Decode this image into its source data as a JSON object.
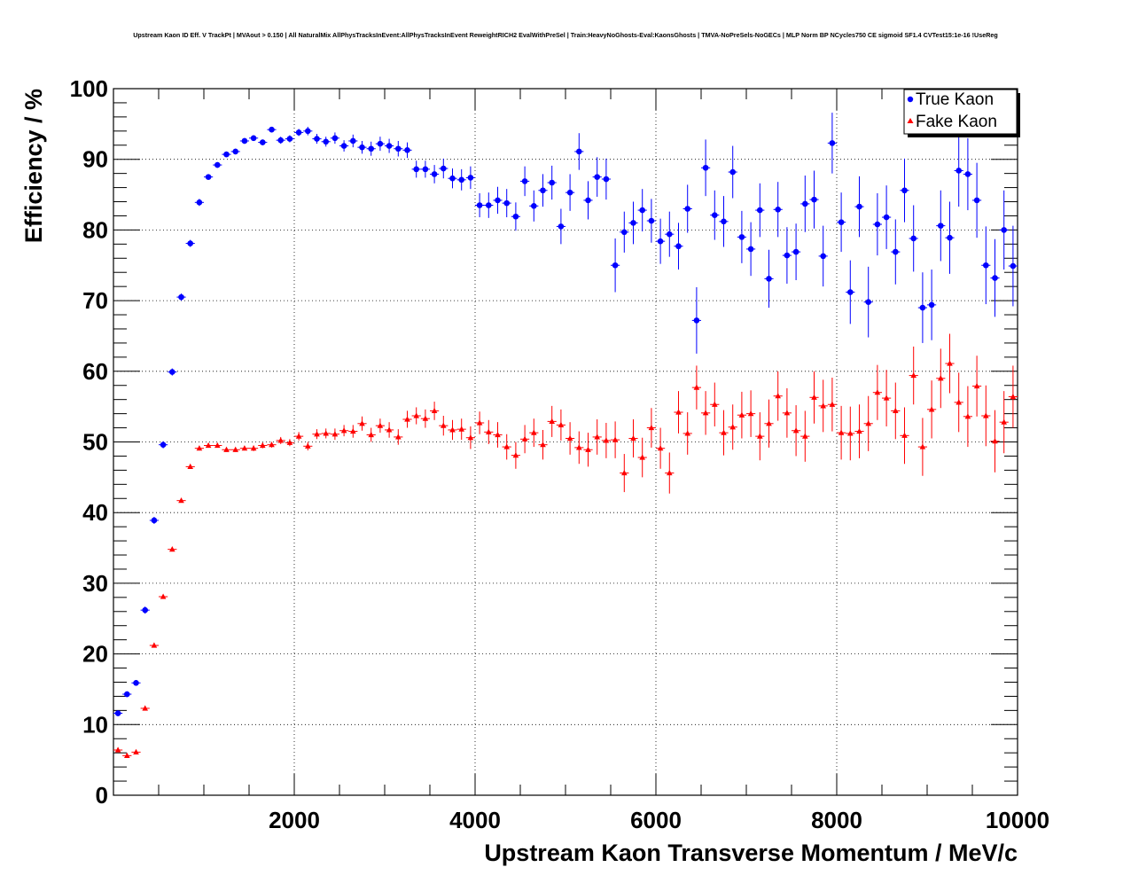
{
  "chart_data": {
    "type": "scatter",
    "title": "Upstream Kaon ID Eff. V TrackPt | MVAout > 0.150 | All NaturalMix AllPhysTracksInEvent:AllPhysTracksInEvent ReweightRICH2 EvalWithPreSel | Train:HeavyNoGhosts-Eval:KaonsGhosts | TMVA-NoPreSels-NoGECs | MLP Norm BP NCycles750 CE sigmoid SF1.4 CVTest15:1e-16 !UseReg",
    "xlabel": "Upstream Kaon Transverse Momentum / MeV/c",
    "ylabel": "Efficiency / %",
    "xlim": [
      0,
      10000
    ],
    "ylim": [
      0,
      100
    ],
    "xticks": [
      2000,
      4000,
      6000,
      8000,
      10000
    ],
    "xtick_labels": [
      "2000",
      "4000",
      "6000",
      "8000",
      "10000"
    ],
    "yticks": [
      0,
      10,
      20,
      30,
      40,
      50,
      60,
      70,
      80,
      90,
      100
    ],
    "ytick_labels": [
      "0",
      "10",
      "20",
      "30",
      "40",
      "50",
      "60",
      "70",
      "80",
      "90",
      "100"
    ],
    "grid": true,
    "bin_half_width": 50,
    "legend": {
      "position": "top-right",
      "entries": [
        {
          "label": "True Kaon",
          "color": "#0000ff",
          "marker": "circle"
        },
        {
          "label": "Fake Kaon",
          "color": "#ff0000",
          "marker": "triangle"
        }
      ]
    },
    "x": [
      50,
      150,
      250,
      350,
      450,
      550,
      650,
      750,
      850,
      950,
      1050,
      1150,
      1250,
      1350,
      1450,
      1550,
      1650,
      1750,
      1850,
      1950,
      2050,
      2150,
      2250,
      2350,
      2450,
      2550,
      2650,
      2750,
      2850,
      2950,
      3050,
      3150,
      3250,
      3350,
      3450,
      3550,
      3650,
      3750,
      3850,
      3950,
      4050,
      4150,
      4250,
      4350,
      4450,
      4550,
      4650,
      4750,
      4850,
      4950,
      5050,
      5150,
      5250,
      5350,
      5450,
      5550,
      5650,
      5750,
      5850,
      5950,
      6050,
      6150,
      6250,
      6350,
      6450,
      6550,
      6650,
      6750,
      6850,
      6950,
      7050,
      7150,
      7250,
      7350,
      7450,
      7550,
      7650,
      7750,
      7850,
      7950,
      8050,
      8150,
      8250,
      8350,
      8450,
      8550,
      8650,
      8750,
      8850,
      8950,
      9050,
      9150,
      9250,
      9350,
      9450,
      9550,
      9650,
      9750,
      9850,
      9950
    ],
    "series": [
      {
        "name": "True Kaon",
        "color": "#0000ff",
        "marker": "circle",
        "values": [
          11.6,
          14.3,
          15.9,
          26.2,
          38.9,
          49.6,
          59.9,
          70.5,
          78.1,
          83.9,
          87.5,
          89.2,
          90.7,
          91.1,
          92.6,
          93,
          92.4,
          94.2,
          92.7,
          92.9,
          93.8,
          94,
          92.9,
          92.5,
          93,
          91.9,
          92.6,
          91.7,
          91.5,
          92.2,
          91.9,
          91.5,
          91.3,
          88.6,
          88.6,
          87.9,
          88.7,
          87.3,
          87.1,
          87.4,
          83.5,
          83.5,
          84.2,
          83.8,
          81.9,
          86.9,
          83.4,
          85.6,
          86.7,
          80.5,
          85.3,
          91.1,
          84.2,
          87.5,
          87.2,
          75,
          79.7,
          81,
          82.8,
          81.3,
          78.4,
          79.4,
          77.7,
          83,
          67.2,
          88.8,
          82.1,
          81.2,
          88.2,
          79,
          77.3,
          82.8,
          73.1,
          82.9,
          76.4,
          76.9,
          83.7,
          84.3,
          76.3,
          92.3,
          81.1,
          71.2,
          83.3,
          69.8,
          80.8,
          81.8,
          76.9,
          85.6,
          78.8,
          69,
          69.4,
          80.6,
          78.9,
          88.4,
          87.9,
          84.2,
          75,
          73.2,
          80,
          74.9
        ],
        "errors": [
          0.4,
          0.4,
          0.4,
          0.5,
          0.5,
          0.5,
          0.5,
          0.5,
          0.5,
          0.5,
          0.4,
          0.4,
          0.4,
          0.4,
          0.4,
          0.4,
          0.4,
          0.4,
          0.5,
          0.5,
          0.5,
          0.6,
          0.7,
          0.7,
          0.8,
          0.8,
          0.9,
          0.9,
          1,
          1,
          1,
          1.1,
          1.1,
          1.2,
          1.2,
          1.3,
          1.4,
          1.4,
          1.5,
          1.6,
          1.7,
          1.8,
          1.9,
          2,
          2,
          2.1,
          2.2,
          2.3,
          2.4,
          2.5,
          2.6,
          2.6,
          2.7,
          2.8,
          2.9,
          3.8,
          2.9,
          3,
          3,
          3.1,
          3.2,
          3.2,
          3.3,
          3.4,
          4.7,
          4,
          3.5,
          3.6,
          3.7,
          3.7,
          3.8,
          3.8,
          4.1,
          3.9,
          4,
          4,
          4,
          4.1,
          4.3,
          4.3,
          4.2,
          4.5,
          4.3,
          5,
          4.4,
          4.5,
          4.6,
          4.5,
          4.7,
          5,
          5,
          5,
          5.1,
          5.1,
          5.1,
          5.3,
          5.5,
          5.5,
          5.6,
          5.7
        ]
      },
      {
        "name": "Fake Kaon",
        "color": "#ff0000",
        "marker": "triangle",
        "values": [
          6.4,
          5.6,
          6.1,
          12.3,
          21.2,
          28.1,
          34.8,
          41.7,
          46.5,
          49.1,
          49.5,
          49.5,
          48.9,
          48.9,
          49.1,
          49.1,
          49.5,
          49.6,
          50.2,
          49.9,
          50.8,
          49.4,
          51.1,
          51.2,
          51.1,
          51.6,
          51.5,
          52.6,
          51,
          52.3,
          51.7,
          50.7,
          53.2,
          53.7,
          53.3,
          54.4,
          52.3,
          51.7,
          51.8,
          50.6,
          52.7,
          51.4,
          51,
          49.3,
          48.1,
          50.4,
          51.3,
          49.6,
          52.9,
          52.4,
          50.5,
          49.2,
          48.9,
          50.7,
          50.2,
          50.3,
          45.6,
          50.5,
          47.8,
          52,
          49.1,
          45.6,
          54.2,
          51.2,
          57.7,
          54.1,
          55.3,
          51.3,
          52.1,
          53.8,
          54,
          50.8,
          52.6,
          56.5,
          54.1,
          51.6,
          50.8,
          56.3,
          55.1,
          55.3,
          51.3,
          51.2,
          51.5,
          52.6,
          57,
          56.2,
          54.4,
          50.9,
          59.4,
          49.3,
          54.6,
          59,
          61.1,
          55.6,
          53.6,
          57.9,
          53.7,
          50.1,
          52.8,
          56.4
        ],
        "errors": [
          0.3,
          0.3,
          0.3,
          0.3,
          0.3,
          0.3,
          0.3,
          0.3,
          0.3,
          0.3,
          0.3,
          0.3,
          0.3,
          0.3,
          0.3,
          0.4,
          0.4,
          0.4,
          0.5,
          0.5,
          0.6,
          0.6,
          0.7,
          0.7,
          0.8,
          0.8,
          0.9,
          1,
          1,
          1,
          1.1,
          1.1,
          1.2,
          1.2,
          1.3,
          1.3,
          1.4,
          1.4,
          1.5,
          1.6,
          1.6,
          1.7,
          1.8,
          1.8,
          1.9,
          2,
          2,
          2.1,
          2.2,
          2.2,
          2.3,
          2.3,
          2.4,
          2.5,
          2.5,
          2.6,
          2.7,
          2.7,
          2.8,
          2.8,
          2.9,
          2.9,
          3,
          3,
          3.1,
          3.1,
          3.1,
          3.2,
          3.2,
          3.3,
          3.3,
          3.4,
          3.4,
          3.5,
          3.5,
          3.6,
          3.6,
          3.7,
          3.7,
          3.8,
          3.8,
          3.8,
          3.8,
          3.9,
          3.9,
          4,
          4,
          4,
          4.1,
          4.1,
          4.1,
          4.2,
          4.2,
          4.2,
          4.3,
          4.3,
          4.3,
          4.4,
          4.4,
          4.4
        ]
      }
    ]
  }
}
